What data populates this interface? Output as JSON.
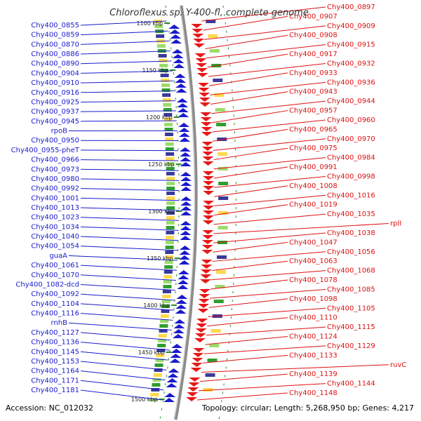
{
  "title": "Chloroflexus sp. Y-400-fl, complete genome",
  "accession": "Accession: NC_012032",
  "topology": "Topology: circular; Length: 5,268,950 bp; Genes: 4,217",
  "ticks": [
    "1100 kbp",
    "1150 kbp",
    "1200 kbp",
    "1250 kbp",
    "1300 kbp",
    "1350 kbp",
    "1400 kbp",
    "1450 kbp",
    "1500 kbp"
  ],
  "left_labels": [
    "Chy400_0855",
    "Chy400_0859",
    "Chy400_0870",
    "Chy400_0886",
    "Chy400_0890",
    "Chy400_0904",
    "Chy400_0910",
    "Chy400_0916",
    "Chy400_0925",
    "Chy400_0937",
    "Chy400_0945",
    "rpoB",
    "Chy400_0950",
    "Chy400_0955-pheT",
    "Chy400_0966",
    "Chy400_0973",
    "Chy400_0980",
    "Chy400_0992",
    "Chy400_1001",
    "Chy400_1013",
    "Chy400_1023",
    "Chy400_1034",
    "Chy400_1040",
    "Chy400_1054",
    "guaA",
    "Chy400_1061",
    "Chy400_1070",
    "Chy400_1082-dcd",
    "Chy400_1092",
    "Chy400_1104",
    "Chy400_1116",
    "rnhB",
    "Chy400_1127",
    "Chy400_1136",
    "Chy400_1145",
    "Chy400_1153",
    "Chy400_1164",
    "Chy400_1171",
    "Chy400_1181"
  ],
  "right_labels": [
    "Chy400_0897",
    "Chy400_0907",
    "Chy400_0909",
    "Chy400_0908",
    "Chy400_0915",
    "Chy400_0917",
    "Chy400_0932",
    "Chy400_0933",
    "Chy400_0936",
    "Chy400_0943",
    "Chy400_0944",
    "Chy400_0957",
    "Chy400_0960",
    "Chy400_0965",
    "Chy400_0970",
    "Chy400_0975",
    "Chy400_0984",
    "Chy400_0991",
    "Chy400_0998",
    "Chy400_1008",
    "Chy400_1016",
    "Chy400_1019",
    "Chy400_1035",
    "rplI",
    "Chy400_1038",
    "Chy400_1047",
    "Chy400_1056",
    "Chy400_1063",
    "Chy400_1068",
    "Chy400_1078",
    "Chy400_1085",
    "Chy400_1098",
    "Chy400_1105",
    "Chy400_1110",
    "Chy400_1115",
    "Chy400_1124",
    "Chy400_1129",
    "Chy400_1133",
    "ruvC",
    "Chy400_1139",
    "Chy400_1144",
    "Chy400_1148"
  ],
  "colors": {
    "left": "#1a1acc",
    "right": "#dd1111",
    "backbone": "#999999",
    "tick": "#2a8a2a"
  }
}
